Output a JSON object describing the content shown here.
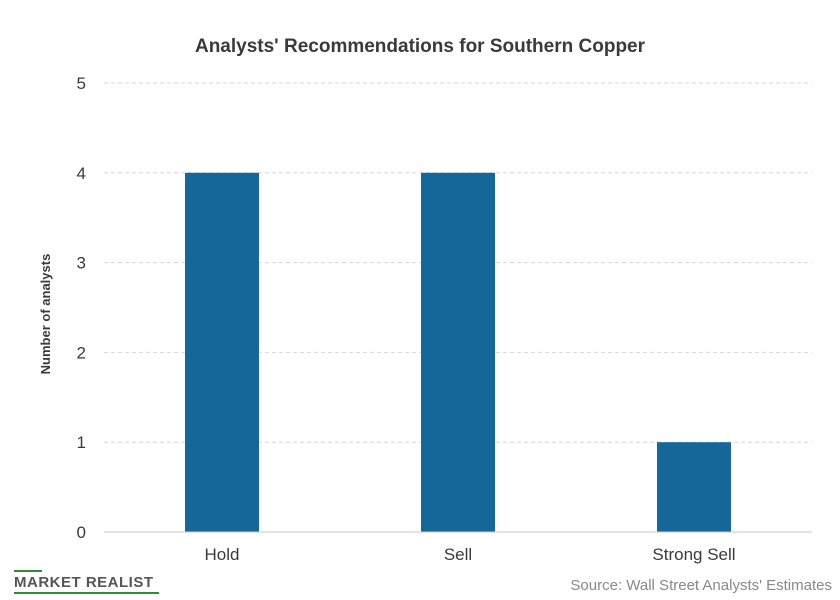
{
  "chart_data": {
    "type": "bar",
    "title": "Analysts' Recommendations  for Southern Copper",
    "xlabel": "",
    "ylabel": "Number of analysts",
    "categories": [
      "Hold",
      "Sell",
      "Strong Sell"
    ],
    "values": [
      4,
      4,
      1
    ],
    "ylim": [
      0,
      5
    ],
    "yticks": [
      0,
      1,
      2,
      3,
      4,
      5
    ],
    "grid": true,
    "legend": "none",
    "bar_color": "#15679a"
  },
  "footer": {
    "source": "Source: Wall Street Analysts' Estimates",
    "logo_text": "MARKET REALIST",
    "logo_color": "#2e8b3a"
  }
}
